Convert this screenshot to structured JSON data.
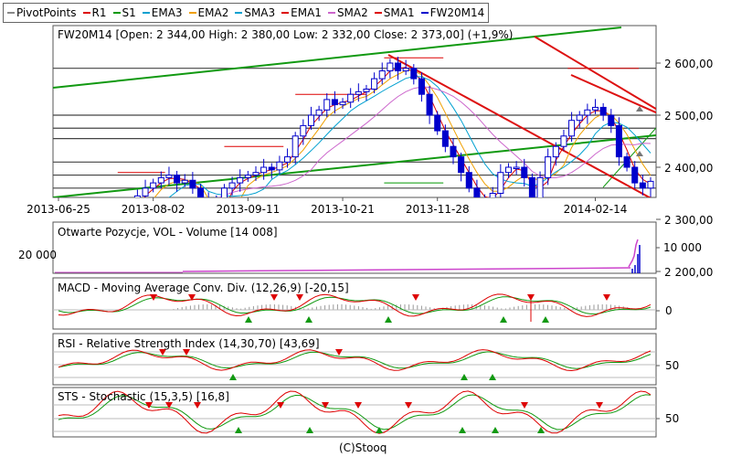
{
  "legend": [
    {
      "label": "PivotPoints",
      "color": "#888888"
    },
    {
      "label": "R1",
      "color": "#dd0000"
    },
    {
      "label": "S1",
      "color": "#009900"
    },
    {
      "label": "EMA3",
      "color": "#00a0d0"
    },
    {
      "label": "EMA2",
      "color": "#f0a000"
    },
    {
      "label": "SMA3",
      "color": "#00a0d0"
    },
    {
      "label": "EMA1",
      "color": "#dd0000"
    },
    {
      "label": "SMA2",
      "color": "#cc66cc"
    },
    {
      "label": "SMA1",
      "color": "#dd0000"
    },
    {
      "label": "FW20M14",
      "color": "#0000cc"
    }
  ],
  "main_panel": {
    "header": "FW20M14 [Open: 2 344,00  High: 2 380,00  Low: 2 332,00  Close: 2 373,00] (+1,9%)",
    "y_ticks": [
      "2 600,00",
      "2 500,00",
      "2 400,00",
      "2 300,00",
      "2 200,00"
    ],
    "x_ticks": [
      "2013-06-25",
      "2013-08-02",
      "2013-09-11",
      "2013-10-21",
      "2013-11-28",
      "2014-02-14"
    ]
  },
  "volume_panel": {
    "header": "Otwarte Pozycje, VOL - Volume [14 008]",
    "left_tick": "20 000",
    "right_tick": "10 000"
  },
  "macd_panel": {
    "header": "MACD - Moving Average Conv. Div. (12,26,9) [-20,15]",
    "right_tick": "0"
  },
  "rsi_panel": {
    "header": "RSI - Relative Strength Index (14,30,70) [43,69]",
    "right_tick": "50"
  },
  "sts_panel": {
    "header": "STS - Stochastic (15,3,5) [16,8]",
    "right_tick": "50"
  },
  "footer": "(C)Stooq",
  "chart_data": {
    "type": "candlestick",
    "instrument": "FW20M14",
    "open": 2344.0,
    "high": 2380.0,
    "low": 2332.0,
    "close": 2373.0,
    "change": "+1,9%",
    "x_range": [
      "2013-06-25",
      "2014-03"
    ],
    "y_range": [
      2130,
      2700
    ],
    "close_series": [
      2190,
      2175,
      2200,
      2230,
      2250,
      2260,
      2270,
      2275,
      2290,
      2330,
      2345,
      2360,
      2370,
      2380,
      2385,
      2370,
      2375,
      2360,
      2340,
      2250,
      2330,
      2360,
      2370,
      2380,
      2385,
      2390,
      2400,
      2395,
      2410,
      2420,
      2460,
      2480,
      2500,
      2510,
      2530,
      2520,
      2525,
      2540,
      2545,
      2550,
      2570,
      2585,
      2600,
      2585,
      2590,
      2570,
      2540,
      2500,
      2470,
      2440,
      2420,
      2390,
      2360,
      2340,
      2330,
      2350,
      2390,
      2400,
      2400,
      2380,
      2320,
      2380,
      2420,
      2440,
      2460,
      2490,
      2500,
      2510,
      2515,
      2500,
      2480,
      2420,
      2400,
      2370,
      2360,
      2373
    ],
    "pivot_levels": [
      2590,
      2500,
      2475,
      2455,
      2410,
      2385,
      2360,
      2315,
      2305
    ],
    "volume_last": 14008,
    "macd": -20.15,
    "rsi": 43.69,
    "sts": 16.8
  }
}
